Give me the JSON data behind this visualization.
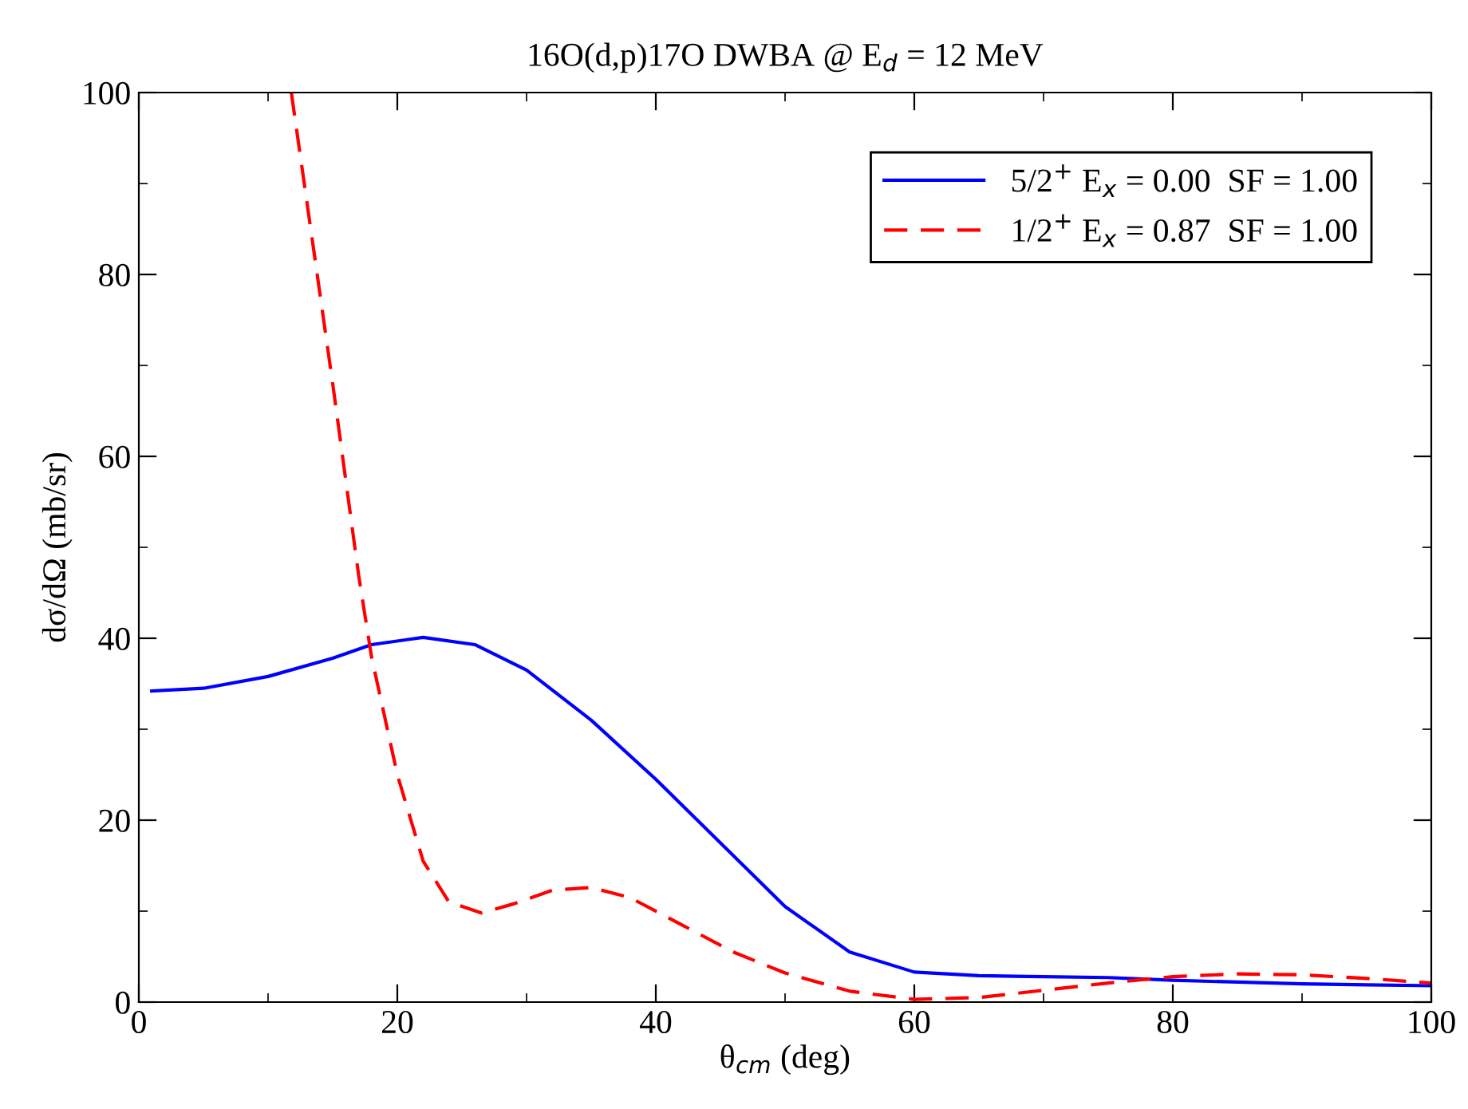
{
  "chart_data": {
    "type": "line",
    "title": "16O(d,p)17O DWBA @ E$_{d}$ = 12 MeV",
    "xlabel": "θ$_{cm}$ (deg)",
    "ylabel": "dσ/dΩ (mb/sr)",
    "xlim": [
      0,
      100
    ],
    "ylim": [
      0,
      100
    ],
    "xticks": [
      0,
      20,
      40,
      60,
      80,
      100
    ],
    "yticks": [
      0,
      20,
      40,
      60,
      80,
      100
    ],
    "grid": false,
    "legend": "top right",
    "series": [
      {
        "name": "5/2$^{+}$ E$_{x}$ = 0.00  SF = 1.00",
        "color": "#0000ff",
        "line_style": "solid",
        "x": [
          1,
          5,
          10,
          15,
          18,
          22,
          26,
          30,
          35,
          40,
          45,
          50,
          55,
          60,
          65,
          70,
          75,
          80,
          85,
          90,
          95,
          100
        ],
        "values": [
          34.2,
          34.5,
          35.8,
          37.8,
          39.3,
          40.1,
          39.3,
          36.5,
          31,
          24.5,
          17.5,
          10.5,
          5.5,
          3.3,
          2.9,
          2.8,
          2.7,
          2.4,
          2.2,
          2.0,
          1.9,
          1.8
        ]
      },
      {
        "name": "1/2$^{+}$ E$_{x}$ = 0.87  SF = 1.00",
        "color": "#ff0000",
        "line_style": "dashed",
        "x": [
          11.8,
          13,
          15,
          17,
          18,
          20,
          22,
          24,
          26.5,
          29,
          32,
          35,
          38,
          42,
          46,
          50,
          55,
          60,
          65,
          70,
          75,
          80,
          85,
          90,
          95,
          100
        ],
        "values": [
          100,
          88,
          68,
          47,
          38,
          25,
          15.5,
          11,
          9.8,
          10.8,
          12.3,
          12.6,
          11.5,
          8.5,
          5.5,
          3.2,
          1.2,
          0.3,
          0.5,
          1.3,
          2.1,
          2.8,
          3.1,
          3.0,
          2.6,
          2.1
        ]
      }
    ]
  }
}
